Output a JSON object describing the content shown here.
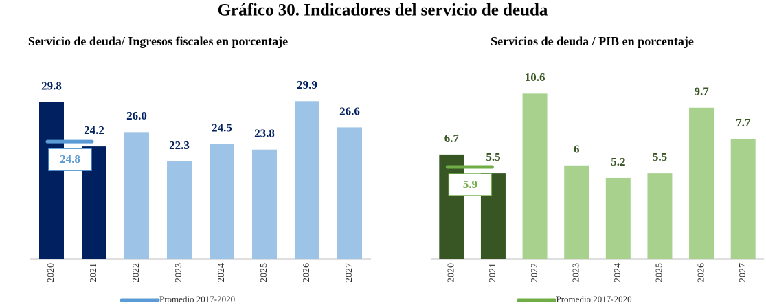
{
  "title": "Gráfico 30.  Indicadores del servicio de deuda",
  "chart_data": [
    {
      "type": "bar",
      "title": "Servicio de deuda/ Ingresos fiscales en porcentaje",
      "categories": [
        "2020",
        "2021",
        "2022",
        "2023",
        "2024",
        "2025",
        "2026",
        "2027"
      ],
      "values": [
        29.8,
        24.2,
        26.0,
        22.3,
        24.5,
        23.8,
        29.9,
        26.6
      ],
      "value_labels": [
        "29.8",
        "24.2",
        "26.0",
        "22.3",
        "24.5",
        "23.8",
        "29.9",
        "26.6"
      ],
      "colors": [
        "#002060",
        "#002060",
        "#9dc3e6",
        "#9dc3e6",
        "#9dc3e6",
        "#9dc3e6",
        "#9dc3e6",
        "#9dc3e6"
      ],
      "label_color": "#002060",
      "ylim": [
        10,
        34
      ],
      "average": {
        "name": "Promedio 2017-2020",
        "value": 24.8,
        "color": "#5b9bd5",
        "label_color": "#5b9bd5"
      }
    },
    {
      "type": "bar",
      "title": "Servicios de deuda / PIB en porcentaje",
      "categories": [
        "2020",
        "2021",
        "2022",
        "2023",
        "2024",
        "2025",
        "2026",
        "2027"
      ],
      "values": [
        6.7,
        5.5,
        10.6,
        6.0,
        5.2,
        5.5,
        9.7,
        7.7
      ],
      "colors": [
        "#375623",
        "#375623",
        "#a9d18e",
        "#a9d18e",
        "#a9d18e",
        "#a9d18e",
        "#a9d18e",
        "#a9d18e"
      ],
      "label_color": "#375623",
      "ylim": [
        0,
        12.2
      ],
      "average": {
        "name": "Promedio 2017-2020",
        "value": 5.9,
        "color": "#70ad47",
        "label_color": "#70ad47"
      }
    }
  ]
}
